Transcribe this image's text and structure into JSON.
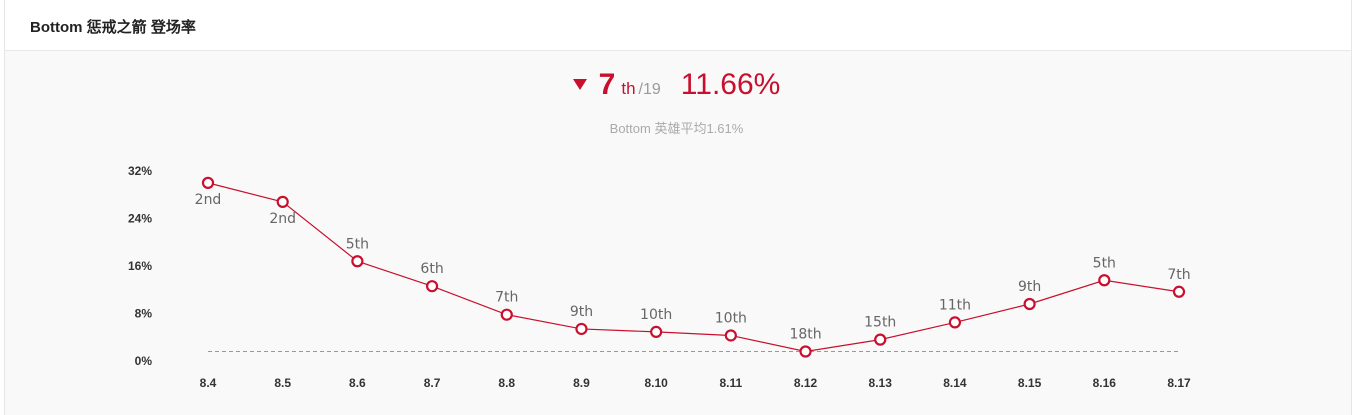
{
  "panel": {
    "title": "Bottom 惩戒之箭 登场率"
  },
  "summary": {
    "trend": "down",
    "rank": "7",
    "rank_suffix": "th",
    "rank_total": "/19",
    "rate": "11.66%",
    "subtitle": "Bottom 英雄平均1.61%"
  },
  "colors": {
    "accent": "#c8102e",
    "average_line": "#999999"
  },
  "chart_data": {
    "type": "line",
    "title": "",
    "xlabel": "",
    "ylabel": "",
    "categories": [
      "8.4",
      "8.5",
      "8.6",
      "8.7",
      "8.8",
      "8.9",
      "8.10",
      "8.11",
      "8.12",
      "8.13",
      "8.14",
      "8.15",
      "8.16",
      "8.17"
    ],
    "series": [
      {
        "values": [
          30.0,
          26.8,
          16.8,
          12.6,
          7.8,
          5.4,
          4.9,
          4.3,
          1.6,
          3.6,
          6.5,
          9.6,
          13.6,
          11.66
        ],
        "labels": [
          "2nd",
          "2nd",
          "5th",
          "6th",
          "7th",
          "9th",
          "10th",
          "10th",
          "18th",
          "15th",
          "11th",
          "9th",
          "5th",
          "7th"
        ]
      }
    ],
    "average": 1.61,
    "ylim": [
      0,
      32
    ],
    "yticks": [
      "0%",
      "8%",
      "16%",
      "24%",
      "32%"
    ],
    "grid": false,
    "legend": "none"
  }
}
